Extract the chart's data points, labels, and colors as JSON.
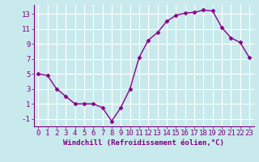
{
  "x": [
    0,
    1,
    2,
    3,
    4,
    5,
    6,
    7,
    8,
    9,
    10,
    11,
    12,
    13,
    14,
    15,
    16,
    17,
    18,
    19,
    20,
    21,
    22,
    23
  ],
  "y": [
    5,
    4.8,
    3,
    2,
    1,
    1,
    1,
    0.5,
    -1.3,
    0.5,
    3,
    7.2,
    9.5,
    10.5,
    12,
    12.8,
    13.1,
    13.2,
    13.5,
    13.4,
    11.2,
    9.8,
    9.2,
    7.2
  ],
  "line_color": "#8B008B",
  "marker": "D",
  "marker_size": 2.5,
  "bg_color": "#c8eaec",
  "grid_color": "#b0d8db",
  "tick_color": "#800080",
  "xlabel": "Windchill (Refroidissement éolien,°C)",
  "xlim": [
    -0.5,
    23.5
  ],
  "ylim": [
    -2,
    14.2
  ],
  "yticks": [
    -1,
    1,
    3,
    5,
    7,
    9,
    11,
    13
  ],
  "xticks": [
    0,
    1,
    2,
    3,
    4,
    5,
    6,
    7,
    8,
    9,
    10,
    11,
    12,
    13,
    14,
    15,
    16,
    17,
    18,
    19,
    20,
    21,
    22,
    23
  ],
  "font_size": 6.5,
  "label_font_size": 6.5,
  "line_width": 1.0
}
